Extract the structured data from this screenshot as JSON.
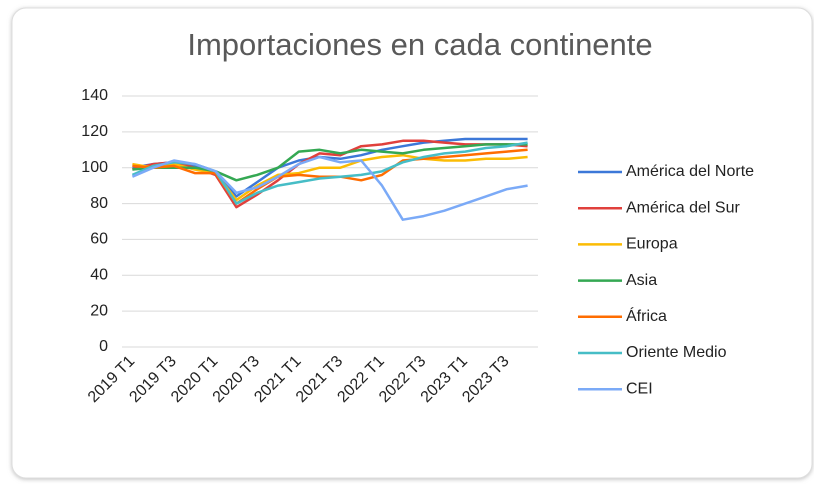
{
  "chart_data": {
    "type": "line",
    "title": "Importaciones en cada continente",
    "categories": [
      "2019 T1",
      null,
      "2019 T3",
      null,
      "2020 T1",
      null,
      "2020 T3",
      null,
      "2021 T1",
      null,
      "2021 T3",
      null,
      "2022 T1",
      null,
      "2022 T3",
      null,
      "2023 T1",
      null,
      "2023 T3",
      null
    ],
    "series": [
      {
        "name": "América del Norte",
        "color": "#3c78d8",
        "values": [
          100,
          102,
          103,
          101,
          97,
          84,
          92,
          100,
          104,
          106,
          105,
          107,
          110,
          112,
          114,
          115,
          116,
          116,
          116,
          116
        ]
      },
      {
        "name": "América del Sur",
        "color": "#e0403c",
        "values": [
          99,
          102,
          103,
          100,
          96,
          78,
          85,
          93,
          102,
          108,
          107,
          112,
          113,
          115,
          115,
          114,
          113,
          113,
          113,
          112
        ]
      },
      {
        "name": "Europa",
        "color": "#fbbc04",
        "values": [
          102,
          100,
          102,
          99,
          97,
          82,
          90,
          96,
          97,
          100,
          100,
          104,
          106,
          107,
          105,
          104,
          104,
          105,
          105,
          106
        ]
      },
      {
        "name": "Asia",
        "color": "#34a853",
        "values": [
          99,
          100,
          100,
          100,
          98,
          93,
          96,
          100,
          109,
          110,
          108,
          110,
          109,
          108,
          110,
          111,
          112,
          113,
          113,
          113
        ]
      },
      {
        "name": "África",
        "color": "#ff6d01",
        "values": [
          101,
          100,
          101,
          97,
          97,
          80,
          88,
          95,
          96,
          95,
          95,
          93,
          96,
          104,
          105,
          106,
          107,
          108,
          109,
          110
        ]
      },
      {
        "name": "Oriente Medio",
        "color": "#46bdc6",
        "values": [
          96,
          101,
          103,
          102,
          98,
          80,
          86,
          90,
          92,
          94,
          95,
          96,
          98,
          103,
          106,
          108,
          109,
          111,
          112,
          114
        ]
      },
      {
        "name": "CEI",
        "color": "#7baaf7",
        "values": [
          95,
          100,
          104,
          102,
          98,
          86,
          89,
          95,
          102,
          106,
          103,
          104,
          90,
          71,
          73,
          76,
          80,
          84,
          88,
          90
        ]
      }
    ],
    "ylim": [
      0,
      140
    ],
    "yticks": [
      0,
      20,
      40,
      60,
      80,
      100,
      120,
      140
    ],
    "grid": true,
    "legend": "right"
  }
}
